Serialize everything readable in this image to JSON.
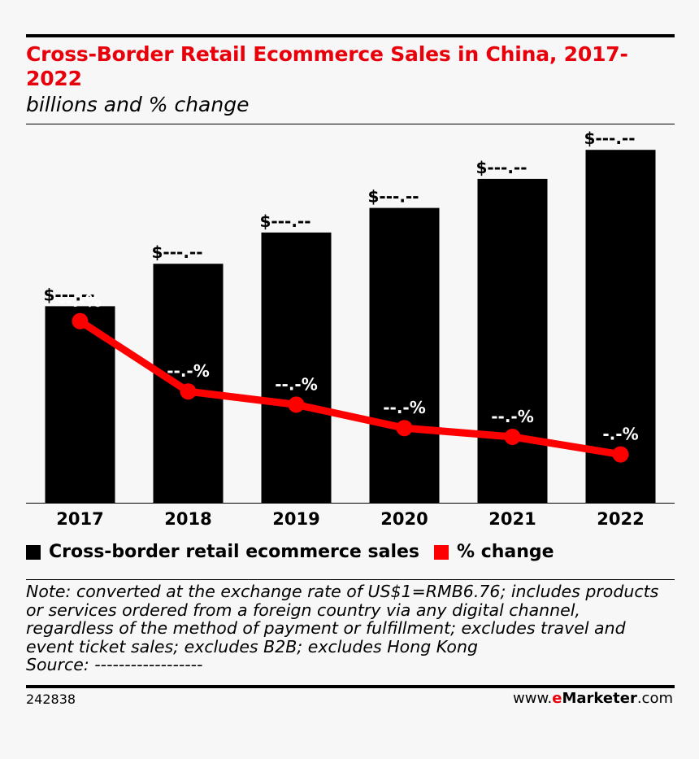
{
  "header": {
    "title": "Cross-Border Retail Ecommerce Sales in China, 2017-2022",
    "subtitle": "billions and % change"
  },
  "chart_data": {
    "type": "bar",
    "categories": [
      "2017",
      "2018",
      "2019",
      "2020",
      "2021",
      "2022"
    ],
    "series": [
      {
        "name": "Cross-border retail ecommerce sales",
        "type": "bar",
        "color": "#000000",
        "values": [
          88,
          107,
          121,
          132,
          145,
          158
        ],
        "labels": [
          "$---.--",
          "$---.--",
          "$---.--",
          "$---.--",
          "$---.--",
          "$---.--"
        ]
      },
      {
        "name": "% change",
        "type": "line",
        "color": "#ff0000",
        "values": [
          62,
          38,
          33.5,
          25.5,
          22.5,
          16.5
        ],
        "labels": [
          "--.-%",
          "--.-%",
          "--.-%",
          "--.-%",
          "--.-%",
          "-.-%"
        ]
      }
    ],
    "xlabel": "",
    "ylabel": "",
    "bar_ylim": [
      0,
      165
    ],
    "line_ylim": [
      0,
      100
    ],
    "legend_position": "bottom-left",
    "grid": false
  },
  "legend": {
    "items": [
      {
        "label": "Cross-border retail ecommerce sales",
        "color": "#000000"
      },
      {
        "label": "% change",
        "color": "#ff0000"
      }
    ]
  },
  "footer": {
    "note_lines": [
      "Note: converted at the exchange rate of US$1=RMB6.76; includes products",
      "or services ordered from a foreign country via any digital channel,",
      "regardless of the method of payment or fulfillment; excludes travel and",
      "event ticket sales; excludes B2B; excludes Hong Kong",
      "Source: ------------------"
    ],
    "chart_id": "242838",
    "brand_prefix": "www.",
    "brand_e": "e",
    "brand_name": "Marketer",
    "brand_suffix": ".com"
  }
}
